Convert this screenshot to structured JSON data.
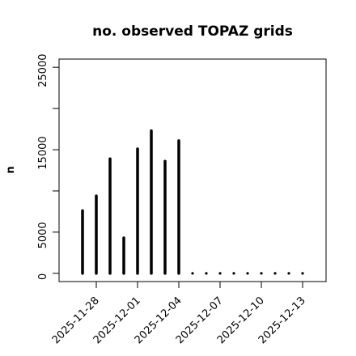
{
  "chart_data": {
    "type": "bar",
    "title": "no. observed TOPAZ grids",
    "xlabel": "",
    "ylabel": "n",
    "ylim": [
      -1000,
      26000
    ],
    "yticks": [
      0,
      5000,
      10000,
      15000,
      20000,
      25000
    ],
    "ytick_labels": [
      "0",
      "5000",
      "",
      "15000",
      "",
      "25000"
    ],
    "x": [
      "2025-11-27",
      "2025-11-28",
      "2025-11-29",
      "2025-11-30",
      "2025-12-01",
      "2025-12-02",
      "2025-12-03",
      "2025-12-04",
      "2025-12-05",
      "2025-12-06",
      "2025-12-07",
      "2025-12-08",
      "2025-12-09",
      "2025-12-10",
      "2025-12-11",
      "2025-12-12",
      "2025-12-13"
    ],
    "values": [
      7600,
      9400,
      13900,
      4300,
      15100,
      17300,
      13600,
      16100,
      0,
      0,
      0,
      0,
      0,
      0,
      0,
      0,
      0
    ],
    "xticks": [
      "2025-11-28",
      "2025-12-01",
      "2025-12-04",
      "2025-12-07",
      "2025-12-10",
      "2025-12-13"
    ],
    "highlight_tick": "2025-12-04",
    "highlight_color": "#228B22",
    "bar_color": "#000000",
    "grid": false
  }
}
